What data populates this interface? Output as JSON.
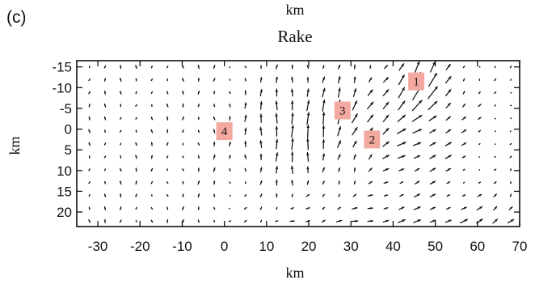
{
  "panel_label": "(c)",
  "top_axis_label": "km",
  "chart_data": {
    "type": "vector-field",
    "title": "Rake",
    "xlabel": "km",
    "ylabel": "km",
    "xlim": [
      -35,
      70
    ],
    "ylim": [
      -16.5,
      23.5
    ],
    "y_inverted": true,
    "x_ticks": [
      -30,
      -20,
      -10,
      0,
      10,
      20,
      30,
      40,
      50,
      60,
      70
    ],
    "y_ticks": [
      -15,
      -10,
      -5,
      0,
      5,
      10,
      15,
      20
    ],
    "x_tick_labels": [
      "-30",
      "-20",
      "-10",
      "0",
      "10",
      "20",
      "30",
      "40",
      "50",
      "60",
      "70"
    ],
    "y_tick_labels": [
      "-15",
      "-10",
      "-5",
      "0",
      "5",
      "10",
      "15",
      "20"
    ],
    "grid": false,
    "arrow_color": "#111111",
    "marker_color": "#f3a9a0",
    "markers": [
      {
        "label": "1",
        "x": 45.5,
        "y": -11.5
      },
      {
        "label": "2",
        "x": 35,
        "y": 2.5
      },
      {
        "label": "3",
        "x": 28,
        "y": -4.5
      },
      {
        "label": "4",
        "x": 0,
        "y": 0.5
      }
    ]
  }
}
